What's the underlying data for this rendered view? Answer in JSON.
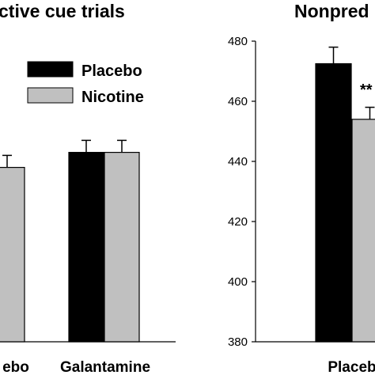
{
  "chart_data": [
    {
      "type": "bar",
      "title": "ctive cue trials",
      "categories": [
        "ebo",
        "Galantamine"
      ],
      "series": [
        {
          "name": "Placebo",
          "color": "#000000",
          "values": [
            null,
            443
          ]
        },
        {
          "name": "Nicotine",
          "color": "#c0c0c0",
          "values": [
            438,
            443
          ]
        }
      ],
      "errors": [
        [
          null,
          4
        ],
        [
          4,
          4
        ]
      ],
      "ylim": [
        380,
        480
      ],
      "legend": "top-left",
      "grid": false
    },
    {
      "type": "bar",
      "title": "Nonpred",
      "categories": [
        "Placeb"
      ],
      "series": [
        {
          "name": "Placebo",
          "color": "#000000",
          "values": [
            472.5
          ]
        },
        {
          "name": "Nicotine",
          "color": "#c0c0c0",
          "values": [
            454
          ]
        }
      ],
      "errors": [
        [
          5.5
        ],
        [
          4
        ]
      ],
      "yticks": [
        380,
        400,
        420,
        440,
        460,
        480
      ],
      "ylim": [
        380,
        480
      ],
      "annotations": [
        {
          "text": "**",
          "series": "Nicotine",
          "category": "Placeb"
        }
      ],
      "grid": false
    }
  ]
}
